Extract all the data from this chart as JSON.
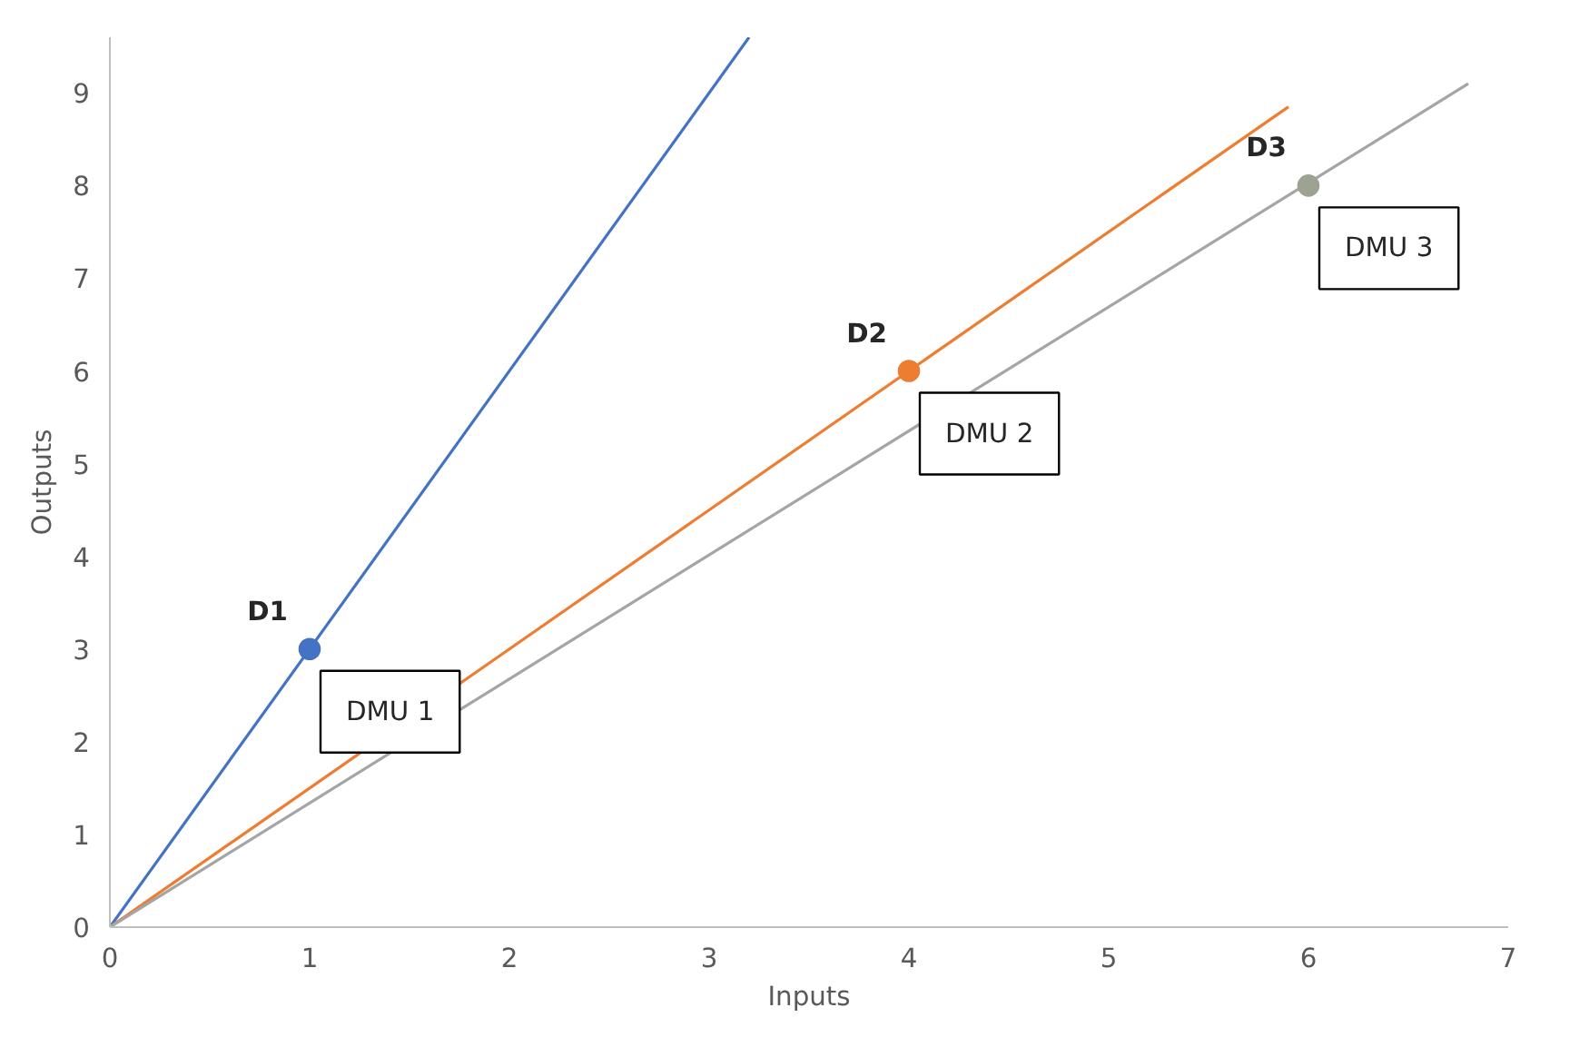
{
  "chart_data": {
    "type": "line",
    "xlabel": "Inputs",
    "ylabel": "Outputs",
    "xlim": [
      0,
      7
    ],
    "ylim": [
      0,
      9.6
    ],
    "xticks": [
      0,
      1,
      2,
      3,
      4,
      5,
      6,
      7
    ],
    "yticks": [
      0,
      1,
      2,
      3,
      4,
      5,
      6,
      7,
      8,
      9
    ],
    "grid": false,
    "line_style": "solid",
    "series": [
      {
        "color": "#4472c4",
        "x": [
          0,
          3.2
        ],
        "values": [
          0,
          9.6
        ],
        "marker": "none"
      },
      {
        "color": "#ed7d31",
        "x": [
          0,
          5.9
        ],
        "values": [
          0,
          8.85
        ],
        "marker": "none"
      },
      {
        "color": "#a5a5a5",
        "x": [
          0,
          6.8
        ],
        "values": [
          0,
          9.1
        ],
        "marker": "none"
      },
      {
        "type": "scatter",
        "name": "D1",
        "color": "#4472c4",
        "x": [
          1
        ],
        "values": [
          3
        ],
        "marker": "circle"
      },
      {
        "type": "scatter",
        "name": "D2",
        "color": "#ed7d31",
        "x": [
          4
        ],
        "values": [
          6
        ],
        "marker": "circle"
      },
      {
        "type": "scatter",
        "name": "D3",
        "color": "#9ca392",
        "x": [
          6
        ],
        "values": [
          8
        ],
        "marker": "circle"
      }
    ],
    "annotations": [
      {
        "text": "DMU 1",
        "x": 1,
        "y": 3
      },
      {
        "text": "DMU 2",
        "x": 4,
        "y": 6
      },
      {
        "text": "DMU 3",
        "x": 6,
        "y": 8
      }
    ]
  }
}
